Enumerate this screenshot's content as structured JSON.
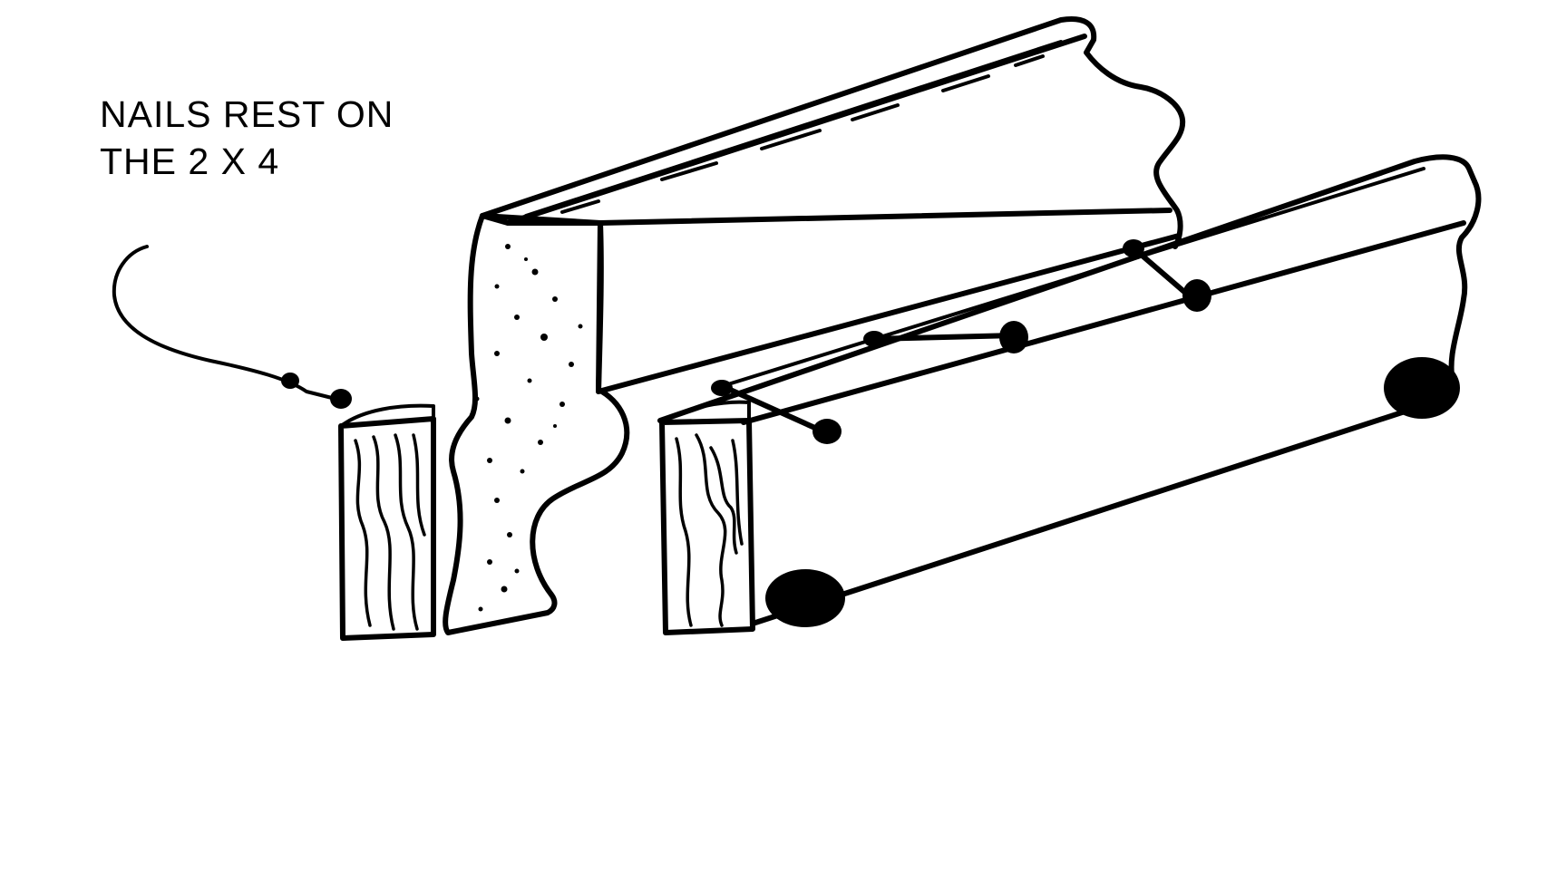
{
  "annotation": {
    "line1": "NAILS REST ON",
    "line2": "THE 2 X 4"
  },
  "icons": {
    "drawing": "concrete-form-nails-on-2x4-illustration"
  }
}
